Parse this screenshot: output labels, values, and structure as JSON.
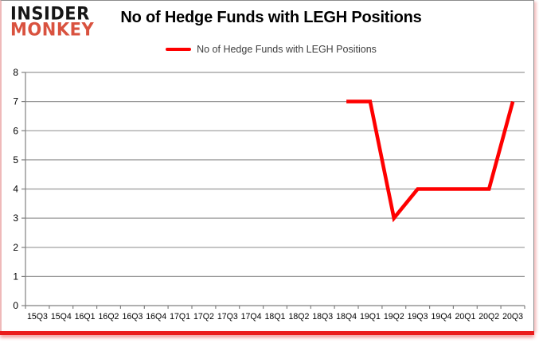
{
  "header": {
    "logo_line1": "INSIDER",
    "logo_line2": "MONKEY",
    "title": "No of Hedge Funds with LEGH Positions"
  },
  "legend": {
    "label": "No of Hedge Funds with LEGH Positions",
    "swatch_color": "#fe0000"
  },
  "chart_data": {
    "type": "line",
    "title": "No of Hedge Funds with LEGH Positions",
    "xlabel": "",
    "ylabel": "",
    "ylim": [
      0,
      8
    ],
    "y_tick_step": 1,
    "y_ticks": [
      0,
      1,
      2,
      3,
      4,
      5,
      6,
      7,
      8
    ],
    "grid": true,
    "legend_position": "top-center",
    "grid_color": "#999999",
    "axis_color": "#808080",
    "tick_label_color": "#000000",
    "categories": [
      "15Q3",
      "15Q4",
      "16Q1",
      "16Q2",
      "16Q3",
      "16Q4",
      "17Q1",
      "17Q2",
      "17Q3",
      "17Q4",
      "18Q1",
      "18Q2",
      "18Q3",
      "18Q4",
      "19Q1",
      "19Q2",
      "19Q3",
      "19Q4",
      "20Q1",
      "20Q2",
      "20Q3"
    ],
    "series": [
      {
        "name": "No of Hedge Funds with LEGH Positions",
        "color": "#fe0000",
        "values": [
          null,
          null,
          null,
          null,
          null,
          null,
          null,
          null,
          null,
          null,
          null,
          null,
          null,
          7,
          7,
          3,
          4,
          4,
          4,
          4,
          7
        ]
      }
    ]
  }
}
